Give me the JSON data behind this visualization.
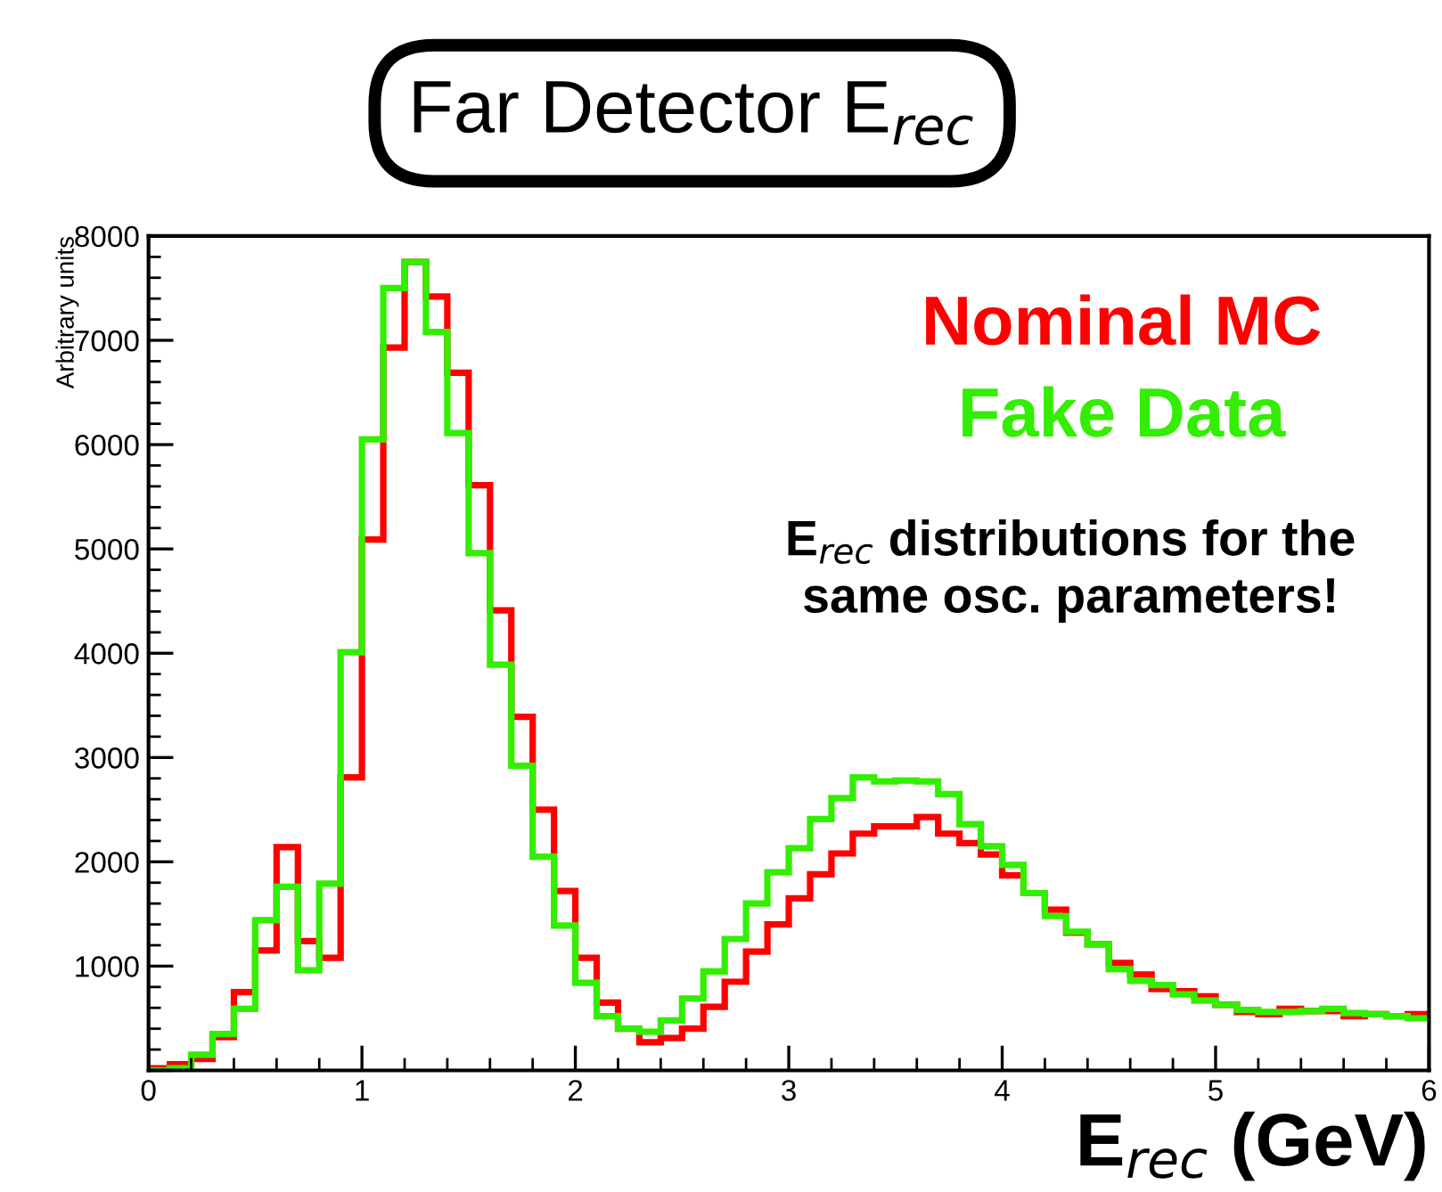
{
  "chart_data": {
    "type": "histogram",
    "title": "Far Detector E$_{rec}$",
    "xlabel": "E$_{rec}$ (GeV)",
    "ylabel": "Arbitrary units",
    "bins": [
      0,
      0.1,
      0.2,
      0.3,
      0.4,
      0.5,
      0.6,
      0.7,
      0.8,
      0.9,
      1,
      1.1,
      1.2,
      1.3,
      1.4,
      1.5,
      1.6,
      1.7,
      1.8,
      1.9,
      2,
      2.1,
      2.2,
      2.3,
      2.4,
      2.5,
      2.6,
      2.7,
      2.8,
      2.9,
      3,
      3.1,
      3.2,
      3.3,
      3.4,
      3.5,
      3.6,
      3.7,
      3.8,
      3.9,
      4,
      4.1,
      4.2,
      4.3,
      4.4,
      4.5,
      4.6,
      4.7,
      4.8,
      4.9,
      5,
      5.1,
      5.2,
      5.3,
      5.4,
      5.5,
      5.6,
      5.7,
      5.8,
      5.9,
      6
    ],
    "series": [
      {
        "name": "Nominal MC",
        "color": "#ff0000",
        "values": [
          20,
          60,
          110,
          320,
          750,
          1150,
          2140,
          1240,
          1080,
          2810,
          5090,
          6930,
          7750,
          7420,
          6690,
          5610,
          4410,
          3390,
          2500,
          1720,
          1080,
          650,
          400,
          270,
          310,
          400,
          610,
          850,
          1140,
          1400,
          1650,
          1880,
          2080,
          2270,
          2340,
          2340,
          2430,
          2270,
          2180,
          2070,
          1870,
          1700,
          1540,
          1320,
          1210,
          1030,
          920,
          780,
          760,
          710,
          630,
          560,
          540,
          590,
          570,
          570,
          520,
          540,
          520,
          540
        ]
      },
      {
        "name": "Fake Data",
        "color": "#33ee00",
        "values": [
          0,
          20,
          150,
          350,
          590,
          1440,
          1760,
          960,
          1790,
          4010,
          6050,
          7500,
          7750,
          7080,
          6110,
          4960,
          3890,
          2920,
          2050,
          1390,
          840,
          520,
          400,
          370,
          480,
          690,
          950,
          1260,
          1600,
          1900,
          2130,
          2410,
          2610,
          2810,
          2770,
          2780,
          2770,
          2650,
          2360,
          2150,
          1970,
          1700,
          1480,
          1330,
          1210,
          970,
          860,
          820,
          730,
          670,
          630,
          580,
          560,
          560,
          570,
          590,
          550,
          540,
          520,
          500
        ]
      }
    ],
    "annotations": [
      "E$_{rec}$ distributions for the\nsame osc. parameters!"
    ],
    "xlim": [
      0,
      6
    ],
    "ylim": [
      0,
      8000
    ],
    "xticks": [
      0,
      1,
      2,
      3,
      4,
      5,
      6
    ],
    "yticks": [
      {
        "value": 0,
        "label": null
      },
      1000,
      2000,
      3000,
      4000,
      5000,
      6000,
      7000,
      8000
    ],
    "legend": "top right",
    "grid": false
  }
}
